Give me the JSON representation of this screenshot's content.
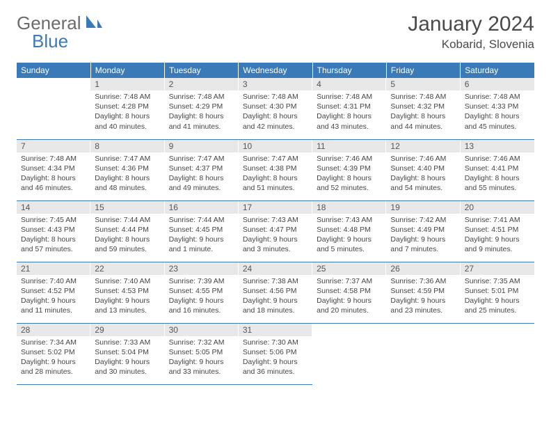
{
  "logo": {
    "general": "General",
    "blue": "Blue"
  },
  "title": "January 2024",
  "location": "Kobarid, Slovenia",
  "day_headers": [
    "Sunday",
    "Monday",
    "Tuesday",
    "Wednesday",
    "Thursday",
    "Friday",
    "Saturday"
  ],
  "colors": {
    "header_bg": "#3a7ab8",
    "header_text": "#ffffff",
    "daynum_bg": "#e8e8e8",
    "body_text": "#454545",
    "title_text": "#4a4a4a",
    "logo_gray": "#6b6b6b",
    "logo_blue": "#3a7ab8",
    "rule": "#3a7ab8"
  },
  "fonts": {
    "title_size": 30,
    "location_size": 17,
    "header_size": 12,
    "body_size": 10.5
  },
  "weeks": [
    [
      {
        "n": "",
        "sr": "",
        "ss": "",
        "dl": ""
      },
      {
        "n": "1",
        "sr": "Sunrise: 7:48 AM",
        "ss": "Sunset: 4:28 PM",
        "dl": "Daylight: 8 hours and 40 minutes."
      },
      {
        "n": "2",
        "sr": "Sunrise: 7:48 AM",
        "ss": "Sunset: 4:29 PM",
        "dl": "Daylight: 8 hours and 41 minutes."
      },
      {
        "n": "3",
        "sr": "Sunrise: 7:48 AM",
        "ss": "Sunset: 4:30 PM",
        "dl": "Daylight: 8 hours and 42 minutes."
      },
      {
        "n": "4",
        "sr": "Sunrise: 7:48 AM",
        "ss": "Sunset: 4:31 PM",
        "dl": "Daylight: 8 hours and 43 minutes."
      },
      {
        "n": "5",
        "sr": "Sunrise: 7:48 AM",
        "ss": "Sunset: 4:32 PM",
        "dl": "Daylight: 8 hours and 44 minutes."
      },
      {
        "n": "6",
        "sr": "Sunrise: 7:48 AM",
        "ss": "Sunset: 4:33 PM",
        "dl": "Daylight: 8 hours and 45 minutes."
      }
    ],
    [
      {
        "n": "7",
        "sr": "Sunrise: 7:48 AM",
        "ss": "Sunset: 4:34 PM",
        "dl": "Daylight: 8 hours and 46 minutes."
      },
      {
        "n": "8",
        "sr": "Sunrise: 7:47 AM",
        "ss": "Sunset: 4:36 PM",
        "dl": "Daylight: 8 hours and 48 minutes."
      },
      {
        "n": "9",
        "sr": "Sunrise: 7:47 AM",
        "ss": "Sunset: 4:37 PM",
        "dl": "Daylight: 8 hours and 49 minutes."
      },
      {
        "n": "10",
        "sr": "Sunrise: 7:47 AM",
        "ss": "Sunset: 4:38 PM",
        "dl": "Daylight: 8 hours and 51 minutes."
      },
      {
        "n": "11",
        "sr": "Sunrise: 7:46 AM",
        "ss": "Sunset: 4:39 PM",
        "dl": "Daylight: 8 hours and 52 minutes."
      },
      {
        "n": "12",
        "sr": "Sunrise: 7:46 AM",
        "ss": "Sunset: 4:40 PM",
        "dl": "Daylight: 8 hours and 54 minutes."
      },
      {
        "n": "13",
        "sr": "Sunrise: 7:46 AM",
        "ss": "Sunset: 4:41 PM",
        "dl": "Daylight: 8 hours and 55 minutes."
      }
    ],
    [
      {
        "n": "14",
        "sr": "Sunrise: 7:45 AM",
        "ss": "Sunset: 4:43 PM",
        "dl": "Daylight: 8 hours and 57 minutes."
      },
      {
        "n": "15",
        "sr": "Sunrise: 7:44 AM",
        "ss": "Sunset: 4:44 PM",
        "dl": "Daylight: 8 hours and 59 minutes."
      },
      {
        "n": "16",
        "sr": "Sunrise: 7:44 AM",
        "ss": "Sunset: 4:45 PM",
        "dl": "Daylight: 9 hours and 1 minute."
      },
      {
        "n": "17",
        "sr": "Sunrise: 7:43 AM",
        "ss": "Sunset: 4:47 PM",
        "dl": "Daylight: 9 hours and 3 minutes."
      },
      {
        "n": "18",
        "sr": "Sunrise: 7:43 AM",
        "ss": "Sunset: 4:48 PM",
        "dl": "Daylight: 9 hours and 5 minutes."
      },
      {
        "n": "19",
        "sr": "Sunrise: 7:42 AM",
        "ss": "Sunset: 4:49 PM",
        "dl": "Daylight: 9 hours and 7 minutes."
      },
      {
        "n": "20",
        "sr": "Sunrise: 7:41 AM",
        "ss": "Sunset: 4:51 PM",
        "dl": "Daylight: 9 hours and 9 minutes."
      }
    ],
    [
      {
        "n": "21",
        "sr": "Sunrise: 7:40 AM",
        "ss": "Sunset: 4:52 PM",
        "dl": "Daylight: 9 hours and 11 minutes."
      },
      {
        "n": "22",
        "sr": "Sunrise: 7:40 AM",
        "ss": "Sunset: 4:53 PM",
        "dl": "Daylight: 9 hours and 13 minutes."
      },
      {
        "n": "23",
        "sr": "Sunrise: 7:39 AM",
        "ss": "Sunset: 4:55 PM",
        "dl": "Daylight: 9 hours and 16 minutes."
      },
      {
        "n": "24",
        "sr": "Sunrise: 7:38 AM",
        "ss": "Sunset: 4:56 PM",
        "dl": "Daylight: 9 hours and 18 minutes."
      },
      {
        "n": "25",
        "sr": "Sunrise: 7:37 AM",
        "ss": "Sunset: 4:58 PM",
        "dl": "Daylight: 9 hours and 20 minutes."
      },
      {
        "n": "26",
        "sr": "Sunrise: 7:36 AM",
        "ss": "Sunset: 4:59 PM",
        "dl": "Daylight: 9 hours and 23 minutes."
      },
      {
        "n": "27",
        "sr": "Sunrise: 7:35 AM",
        "ss": "Sunset: 5:01 PM",
        "dl": "Daylight: 9 hours and 25 minutes."
      }
    ],
    [
      {
        "n": "28",
        "sr": "Sunrise: 7:34 AM",
        "ss": "Sunset: 5:02 PM",
        "dl": "Daylight: 9 hours and 28 minutes."
      },
      {
        "n": "29",
        "sr": "Sunrise: 7:33 AM",
        "ss": "Sunset: 5:04 PM",
        "dl": "Daylight: 9 hours and 30 minutes."
      },
      {
        "n": "30",
        "sr": "Sunrise: 7:32 AM",
        "ss": "Sunset: 5:05 PM",
        "dl": "Daylight: 9 hours and 33 minutes."
      },
      {
        "n": "31",
        "sr": "Sunrise: 7:30 AM",
        "ss": "Sunset: 5:06 PM",
        "dl": "Daylight: 9 hours and 36 minutes."
      },
      {
        "n": "",
        "sr": "",
        "ss": "",
        "dl": ""
      },
      {
        "n": "",
        "sr": "",
        "ss": "",
        "dl": ""
      },
      {
        "n": "",
        "sr": "",
        "ss": "",
        "dl": ""
      }
    ]
  ]
}
